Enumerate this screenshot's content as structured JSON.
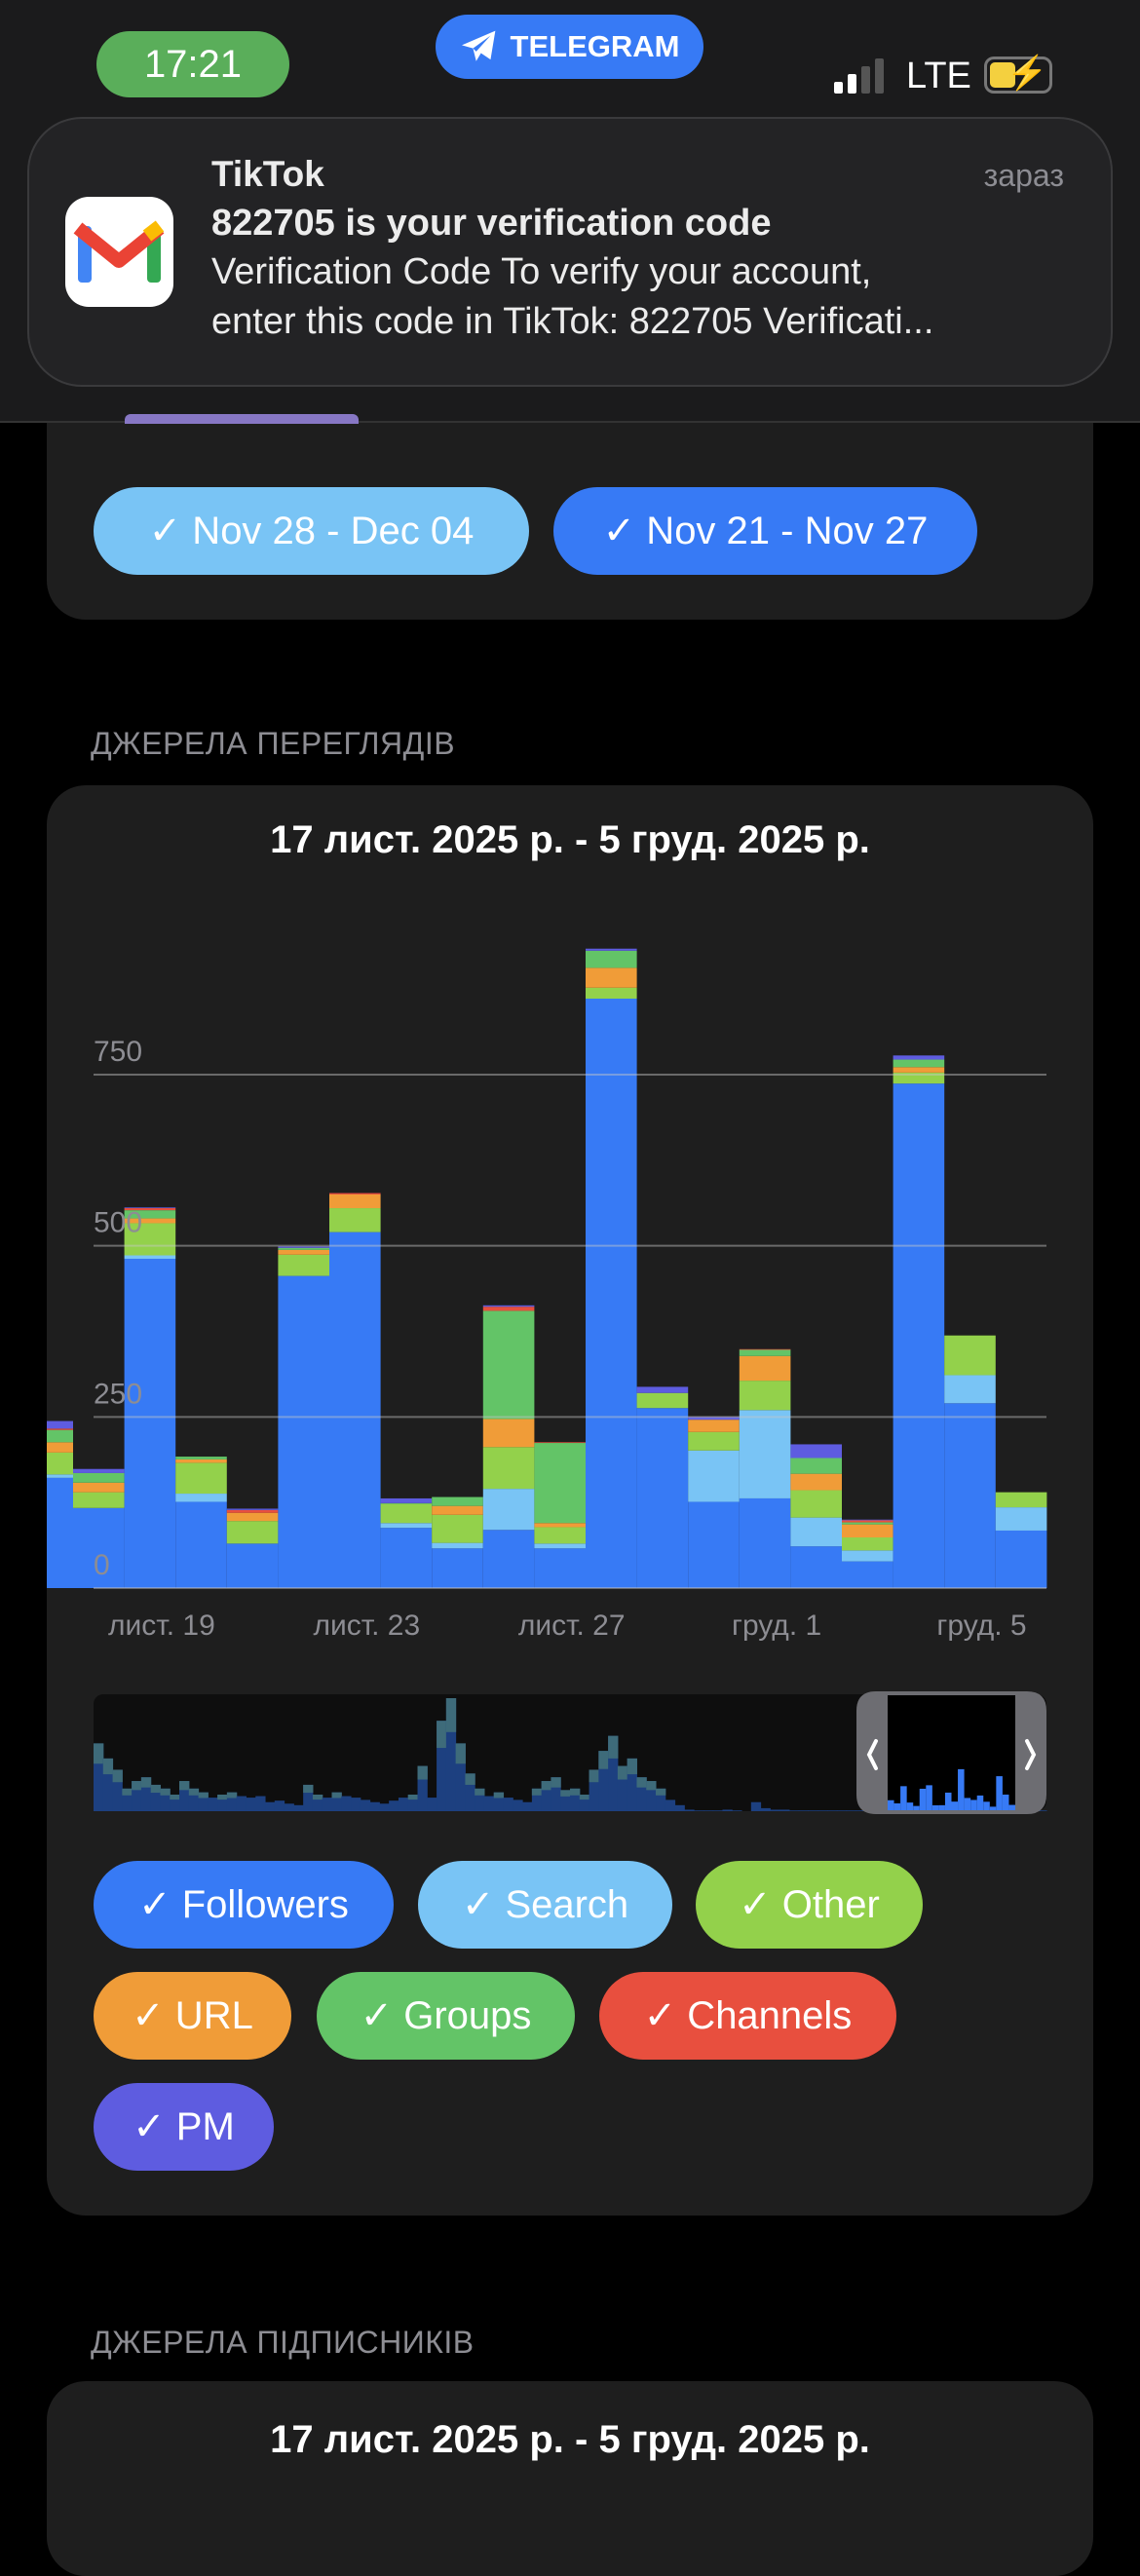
{
  "status_bar": {
    "time": "17:21",
    "active_app": "TELEGRAM",
    "network": "LTE",
    "signal_bars": 2,
    "battery_charging": true
  },
  "notification": {
    "app": "TikTok",
    "time": "зараз",
    "title": "822705 is your verification code",
    "body_line1": "Verification Code To verify your account,",
    "body_line2": "enter this code in TikTok: 822705 Verificati...",
    "icon": "gmail-icon"
  },
  "compare_chips": [
    {
      "label": "✓ Nov 28 - Dec 04",
      "color": "#79c4f5"
    },
    {
      "label": "✓ Nov 21 - Nov 27",
      "color": "#377af5"
    }
  ],
  "views_section": {
    "header": "ДЖЕРЕЛА ПЕРЕГЛЯДІВ",
    "title": "17 лист. 2025 р. - 5 груд. 2025 р."
  },
  "subscribers_section": {
    "header": "ДЖЕРЕЛА ПІДПИСНИКІВ",
    "title": "17 лист. 2025 р. - 5 груд. 2025 р."
  },
  "chart_data": {
    "type": "bar",
    "stacked": true,
    "ylim": [
      0,
      950
    ],
    "yticks": [
      0,
      250,
      500,
      750
    ],
    "ytick_labels": [
      "0",
      "250",
      "500",
      "750"
    ],
    "grid": true,
    "xtick_labels": [
      {
        "label": "лист. 19",
        "date": "Nov 19"
      },
      {
        "label": "лист. 23",
        "date": "Nov 23"
      },
      {
        "label": "лист. 27",
        "date": "Nov 27"
      },
      {
        "label": "груд. 1",
        "date": "Dec 1"
      },
      {
        "label": "груд. 5",
        "date": "Dec 5"
      }
    ],
    "categories": [
      "Nov 17",
      "Nov 18",
      "Nov 19",
      "Nov 20",
      "Nov 21",
      "Nov 22",
      "Nov 23",
      "Nov 24",
      "Nov 25",
      "Nov 26",
      "Nov 27",
      "Nov 28",
      "Nov 29",
      "Nov 30",
      "Dec 1",
      "Dec 2",
      "Dec 3",
      "Dec 4",
      "Dec 5",
      "Dec 6"
    ],
    "series": [
      {
        "name": "Followers",
        "color": "#377af5",
        "values": [
          161,
          117,
          481,
          126,
          65,
          456,
          520,
          88,
          58,
          85,
          58,
          861,
          263,
          126,
          131,
          61,
          39,
          737,
          270,
          84
        ]
      },
      {
        "name": "Search",
        "color": "#79c4f5",
        "values": [
          5,
          0,
          5,
          12,
          0,
          0,
          0,
          7,
          8,
          60,
          7,
          0,
          0,
          75,
          129,
          42,
          16,
          0,
          41,
          34
        ]
      },
      {
        "name": "Other",
        "color": "#93d14b",
        "values": [
          32,
          23,
          47,
          45,
          33,
          31,
          35,
          28,
          41,
          61,
          24,
          16,
          22,
          27,
          43,
          40,
          19,
          16,
          58,
          22
        ]
      },
      {
        "name": "URL",
        "color": "#f09c38",
        "values": [
          15,
          14,
          7,
          5,
          12,
          7,
          20,
          0,
          13,
          41,
          6,
          29,
          0,
          18,
          36,
          24,
          19,
          8,
          0,
          0
        ]
      },
      {
        "name": "Groups",
        "color": "#63c467",
        "values": [
          18,
          14,
          12,
          4,
          0,
          3,
          0,
          1,
          13,
          158,
          117,
          25,
          0,
          0,
          9,
          23,
          3,
          11,
          0,
          0
        ]
      },
      {
        "name": "Channels",
        "color": "#e84f3e",
        "values": [
          2,
          0,
          3,
          0,
          4,
          0,
          2,
          0,
          0,
          6,
          1,
          0,
          0,
          0,
          1,
          0,
          3,
          0,
          0,
          0
        ]
      },
      {
        "name": "PM",
        "color": "#5e5ce0",
        "values": [
          11,
          6,
          1,
          0,
          2,
          2,
          0,
          7,
          0,
          2,
          0,
          3,
          9,
          4,
          0,
          20,
          1,
          6,
          0,
          0
        ]
      }
    ],
    "minimap_totals": [
      90,
      70,
      55,
      30,
      40,
      45,
      35,
      30,
      22,
      40,
      30,
      25,
      18,
      22,
      25,
      20,
      18,
      20,
      12,
      14,
      10,
      8,
      35,
      22,
      18,
      25,
      20,
      18,
      15,
      12,
      10,
      14,
      18,
      22,
      60,
      18,
      120,
      150,
      90,
      50,
      30,
      20,
      25,
      18,
      15,
      12,
      30,
      40,
      45,
      28,
      30,
      22,
      55,
      80,
      100,
      60,
      70,
      45,
      40,
      30,
      15,
      8,
      2,
      1,
      1,
      1,
      2,
      1,
      0,
      12,
      4,
      2,
      2,
      1,
      1,
      1,
      1,
      1,
      1,
      1,
      1,
      1,
      2,
      8,
      10,
      6,
      3,
      2,
      5,
      5,
      2,
      3,
      6,
      4,
      3,
      4,
      3,
      2,
      1,
      1
    ],
    "minimap_window": "last 20 days"
  },
  "legend": [
    {
      "label": "✓ Followers",
      "color": "#377af5"
    },
    {
      "label": "✓ Search",
      "color": "#79c4f5"
    },
    {
      "label": "✓ Other",
      "color": "#93d14b"
    },
    {
      "label": "✓ URL",
      "color": "#f09c38"
    },
    {
      "label": "✓ Groups",
      "color": "#63c467"
    },
    {
      "label": "✓ Channels",
      "color": "#e84f3e"
    },
    {
      "label": "✓ PM",
      "color": "#5e5ce0"
    }
  ]
}
